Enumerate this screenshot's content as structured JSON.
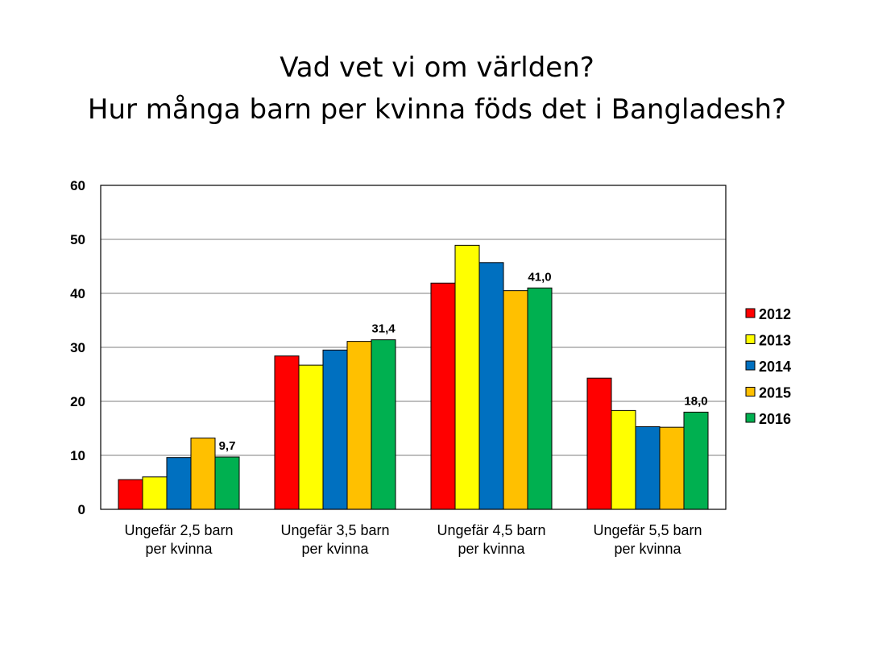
{
  "title": {
    "line1": "Vad vet vi om världen?",
    "line2": "Hur många barn per kvinna föds det i Bangladesh?"
  },
  "chart_data": {
    "type": "bar",
    "categories": [
      [
        "Ungefär 2,5 barn",
        "per kvinna"
      ],
      [
        "Ungefär 3,5 barn",
        "per kvinna"
      ],
      [
        "Ungefär 4,5 barn",
        "per kvinna"
      ],
      [
        "Ungefär 5,5 barn",
        "per kvinna"
      ]
    ],
    "series": [
      {
        "name": "2012",
        "color": "#ff0000",
        "values": [
          5.5,
          28.4,
          41.9,
          24.3
        ]
      },
      {
        "name": "2013",
        "color": "#ffff00",
        "values": [
          6.0,
          26.7,
          48.9,
          18.3
        ]
      },
      {
        "name": "2014",
        "color": "#0070c0",
        "values": [
          9.6,
          29.5,
          45.7,
          15.3
        ]
      },
      {
        "name": "2015",
        "color": "#ffc000",
        "values": [
          13.2,
          31.1,
          40.5,
          15.2
        ]
      },
      {
        "name": "2016",
        "color": "#00b050",
        "values": [
          9.7,
          31.4,
          41.0,
          18.0
        ]
      }
    ],
    "data_labels": [
      "9,7",
      "31,4",
      "41,0",
      "18,0"
    ],
    "data_label_series": "2016",
    "yticks": [
      "0",
      "10",
      "20",
      "30",
      "40",
      "50",
      "60"
    ],
    "ylim": [
      0,
      60
    ],
    "grid": true,
    "legend_position": "right"
  }
}
